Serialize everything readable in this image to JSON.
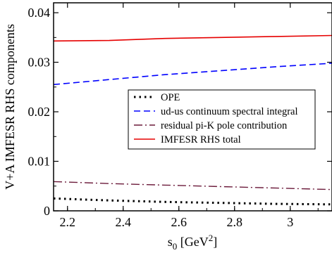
{
  "chart_data": {
    "type": "line",
    "xlabel": {
      "main": "s",
      "sub": "0",
      "unit_open": " [GeV",
      "sup": "2",
      "unit_close": "]"
    },
    "ylabel": "V+A IMFESR RHS components",
    "xlim": [
      2.15,
      3.15
    ],
    "ylim": [
      0,
      0.042
    ],
    "x_ticks": [
      2.2,
      2.4,
      2.6,
      2.8,
      3.0
    ],
    "x_tick_labels": [
      "2.2",
      "2.4",
      "2.6",
      "2.8",
      "3"
    ],
    "y_ticks": [
      0,
      0.01,
      0.02,
      0.03,
      0.04
    ],
    "y_tick_labels": [
      "0",
      "0.01",
      "0.02",
      "0.03",
      "0.04"
    ],
    "legend_position": "center-right",
    "series": [
      {
        "name": "OPE",
        "color": "#000000",
        "dash": "dotted",
        "x": [
          2.15,
          2.35,
          2.55,
          2.75,
          2.95,
          3.15
        ],
        "y": [
          0.0025,
          0.0021,
          0.0018,
          0.0016,
          0.0014,
          0.0013
        ]
      },
      {
        "name": "ud-us continuum spectral integral",
        "color": "#0000ff",
        "dash": "dashed",
        "x": [
          2.15,
          2.35,
          2.55,
          2.75,
          2.95,
          3.15
        ],
        "y": [
          0.0255,
          0.0265,
          0.0275,
          0.0283,
          0.0291,
          0.0298
        ]
      },
      {
        "name": "residual pi-K pole contribution",
        "color": "#6b1a3a",
        "dash": "dashdot",
        "x": [
          2.15,
          2.35,
          2.55,
          2.75,
          2.95,
          3.15
        ],
        "y": [
          0.0059,
          0.0055,
          0.0052,
          0.0049,
          0.0046,
          0.0043
        ]
      },
      {
        "name": "IMFESR RHS total",
        "color": "#e60000",
        "dash": "solid",
        "x": [
          2.15,
          2.35,
          2.55,
          2.75,
          2.95,
          3.15
        ],
        "y": [
          0.0343,
          0.0344,
          0.0348,
          0.035,
          0.0352,
          0.0354
        ]
      }
    ]
  }
}
